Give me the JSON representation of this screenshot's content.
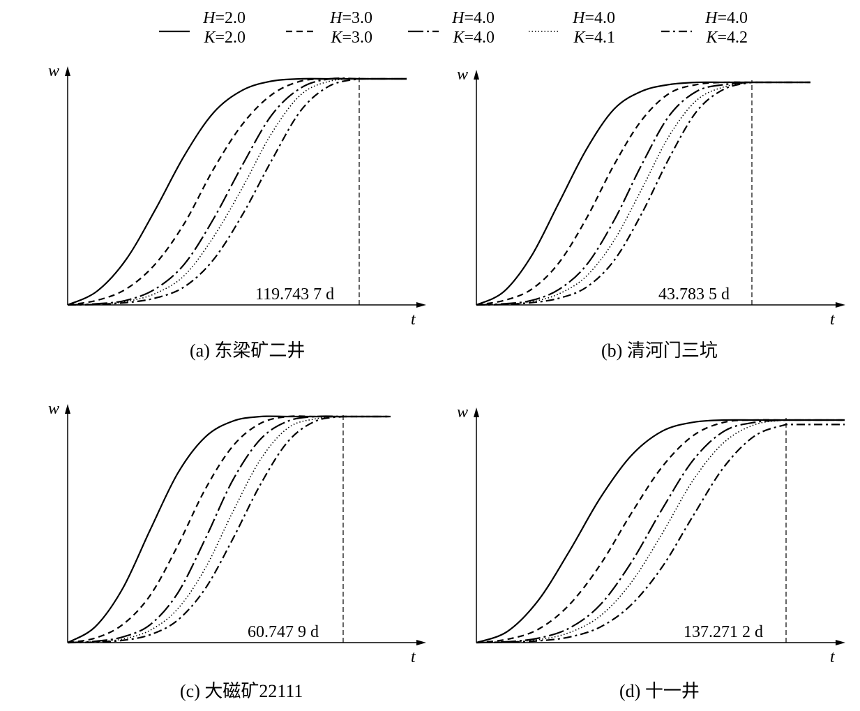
{
  "legend": [
    {
      "h": "2.0",
      "k": "2.0",
      "dash": "solid"
    },
    {
      "h": "3.0",
      "k": "3.0",
      "dash": "dashed"
    },
    {
      "h": "4.0",
      "k": "4.0",
      "dash": "long-dash-dot"
    },
    {
      "h": "4.0",
      "k": "4.1",
      "dash": "dotted"
    },
    {
      "h": "4.0",
      "k": "4.2",
      "dash": "dash-dot"
    }
  ],
  "legend_labels": {
    "h": "H",
    "k": "K"
  },
  "chart_data": [
    {
      "type": "line",
      "caption": "(a) 东梁矿二井",
      "xlabel": "t",
      "ylabel": "w",
      "annotation": "119.743 7 d",
      "x_range": [
        0,
        1
      ],
      "y_range": [
        0,
        1
      ],
      "series": [
        {
          "legend_index": 0,
          "x": [
            0,
            0.1,
            0.2,
            0.3,
            0.4,
            0.5,
            0.6,
            0.7,
            0.8,
            0.9,
            1.0
          ],
          "y": [
            0,
            0.06,
            0.2,
            0.42,
            0.66,
            0.85,
            0.95,
            0.99,
            1,
            1,
            1
          ]
        },
        {
          "legend_index": 1,
          "x": [
            0,
            0.1,
            0.2,
            0.3,
            0.4,
            0.5,
            0.6,
            0.7,
            0.8,
            0.9,
            1.0
          ],
          "y": [
            0,
            0.02,
            0.07,
            0.18,
            0.36,
            0.6,
            0.8,
            0.93,
            0.99,
            1,
            1
          ]
        },
        {
          "legend_index": 2,
          "x": [
            0,
            0.1,
            0.2,
            0.3,
            0.4,
            0.5,
            0.6,
            0.7,
            0.8,
            0.9,
            1.0
          ],
          "y": [
            0,
            0.005,
            0.02,
            0.07,
            0.18,
            0.38,
            0.62,
            0.84,
            0.96,
            1,
            1
          ]
        },
        {
          "legend_index": 3,
          "x": [
            0,
            0.1,
            0.2,
            0.3,
            0.4,
            0.5,
            0.6,
            0.7,
            0.8,
            0.9,
            1.0
          ],
          "y": [
            0,
            0.003,
            0.015,
            0.05,
            0.13,
            0.3,
            0.52,
            0.76,
            0.93,
            0.99,
            1
          ]
        },
        {
          "legend_index": 4,
          "x": [
            0,
            0.1,
            0.2,
            0.3,
            0.4,
            0.5,
            0.6,
            0.7,
            0.8,
            0.9,
            1.0
          ],
          "y": [
            0,
            0.002,
            0.01,
            0.03,
            0.08,
            0.2,
            0.4,
            0.64,
            0.86,
            0.97,
            1
          ]
        }
      ]
    },
    {
      "type": "line",
      "caption": "(b) 清河门三坑",
      "xlabel": "t",
      "ylabel": "w",
      "annotation": "43.783 5 d",
      "x_range": [
        0,
        1
      ],
      "y_range": [
        0,
        1
      ],
      "series": [
        {
          "legend_index": 0,
          "x": [
            0,
            0.1,
            0.2,
            0.3,
            0.4,
            0.5,
            0.6,
            0.7,
            0.8,
            0.9,
            1.0
          ],
          "y": [
            0,
            0.06,
            0.22,
            0.46,
            0.7,
            0.88,
            0.96,
            0.99,
            1,
            1,
            1
          ]
        },
        {
          "legend_index": 1,
          "x": [
            0,
            0.1,
            0.2,
            0.3,
            0.4,
            0.5,
            0.6,
            0.7,
            0.8,
            0.9,
            1.0
          ],
          "y": [
            0,
            0.02,
            0.07,
            0.19,
            0.39,
            0.63,
            0.83,
            0.95,
            0.99,
            1,
            1
          ]
        },
        {
          "legend_index": 2,
          "x": [
            0,
            0.1,
            0.2,
            0.3,
            0.4,
            0.5,
            0.6,
            0.7,
            0.8,
            0.9,
            1.0
          ],
          "y": [
            0,
            0.005,
            0.02,
            0.07,
            0.18,
            0.38,
            0.63,
            0.85,
            0.96,
            0.99,
            1
          ]
        },
        {
          "legend_index": 3,
          "x": [
            0,
            0.1,
            0.2,
            0.3,
            0.4,
            0.5,
            0.6,
            0.7,
            0.8,
            0.9,
            1.0
          ],
          "y": [
            0,
            0.003,
            0.014,
            0.05,
            0.13,
            0.29,
            0.52,
            0.76,
            0.92,
            0.98,
            1
          ]
        },
        {
          "legend_index": 4,
          "x": [
            0,
            0.1,
            0.2,
            0.3,
            0.4,
            0.5,
            0.6,
            0.7,
            0.8,
            0.9,
            1.0
          ],
          "y": [
            0,
            0.002,
            0.01,
            0.03,
            0.08,
            0.2,
            0.41,
            0.66,
            0.87,
            0.97,
            1
          ]
        }
      ]
    },
    {
      "type": "line",
      "caption": "(c) 大磁矿22111",
      "xlabel": "t",
      "ylabel": "w",
      "annotation": "60.747 9 d",
      "x_range": [
        0,
        1
      ],
      "y_range": [
        0,
        1
      ],
      "series": [
        {
          "legend_index": 0,
          "x": [
            0,
            0.1,
            0.2,
            0.3,
            0.4,
            0.5,
            0.6,
            0.7,
            0.8,
            0.9,
            1.0
          ],
          "y": [
            0,
            0.07,
            0.24,
            0.5,
            0.75,
            0.91,
            0.98,
            1,
            1,
            1,
            1
          ]
        },
        {
          "legend_index": 1,
          "x": [
            0,
            0.1,
            0.2,
            0.3,
            0.4,
            0.5,
            0.6,
            0.7,
            0.8,
            0.9,
            1.0
          ],
          "y": [
            0,
            0.02,
            0.08,
            0.21,
            0.43,
            0.68,
            0.87,
            0.97,
            1,
            1,
            1
          ]
        },
        {
          "legend_index": 2,
          "x": [
            0,
            0.1,
            0.2,
            0.3,
            0.4,
            0.5,
            0.6,
            0.7,
            0.8,
            0.9,
            1.0
          ],
          "y": [
            0,
            0.006,
            0.025,
            0.08,
            0.22,
            0.46,
            0.72,
            0.9,
            0.98,
            1,
            1
          ]
        },
        {
          "legend_index": 3,
          "x": [
            0,
            0.1,
            0.2,
            0.3,
            0.4,
            0.5,
            0.6,
            0.7,
            0.8,
            0.9,
            1.0
          ],
          "y": [
            0,
            0.004,
            0.016,
            0.055,
            0.15,
            0.33,
            0.58,
            0.81,
            0.95,
            0.99,
            1
          ]
        },
        {
          "legend_index": 4,
          "x": [
            0,
            0.1,
            0.2,
            0.3,
            0.4,
            0.5,
            0.6,
            0.7,
            0.8,
            0.9,
            1.0
          ],
          "y": [
            0,
            0.002,
            0.01,
            0.035,
            0.1,
            0.24,
            0.46,
            0.7,
            0.89,
            0.98,
            1
          ]
        }
      ]
    },
    {
      "type": "line",
      "caption": "(d) 十一井",
      "xlabel": "t",
      "ylabel": "w",
      "annotation": "137.271 2 d",
      "x_range": [
        0,
        1
      ],
      "y_range": [
        0,
        1
      ],
      "series": [
        {
          "legend_index": 0,
          "x": [
            0,
            0.1,
            0.2,
            0.3,
            0.4,
            0.5,
            0.6,
            0.7,
            0.8,
            0.9,
            1.0
          ],
          "y": [
            0,
            0.05,
            0.19,
            0.41,
            0.65,
            0.84,
            0.95,
            0.99,
            1,
            1,
            1
          ]
        },
        {
          "legend_index": 1,
          "x": [
            0,
            0.1,
            0.2,
            0.3,
            0.4,
            0.5,
            0.6,
            0.7,
            0.8,
            0.9,
            1.0
          ],
          "y": [
            0,
            0.015,
            0.06,
            0.17,
            0.35,
            0.58,
            0.79,
            0.93,
            0.99,
            1,
            1
          ]
        },
        {
          "legend_index": 2,
          "x": [
            0,
            0.1,
            0.2,
            0.3,
            0.4,
            0.5,
            0.6,
            0.7,
            0.8,
            0.9,
            1.0
          ],
          "y": [
            0,
            0.004,
            0.02,
            0.065,
            0.17,
            0.36,
            0.6,
            0.82,
            0.95,
            0.99,
            1
          ]
        },
        {
          "legend_index": 3,
          "x": [
            0,
            0.1,
            0.2,
            0.3,
            0.4,
            0.5,
            0.6,
            0.7,
            0.8,
            0.9,
            1.0
          ],
          "y": [
            0,
            0.003,
            0.013,
            0.045,
            0.12,
            0.27,
            0.49,
            0.73,
            0.9,
            0.98,
            1
          ]
        },
        {
          "legend_index": 4,
          "x": [
            0,
            0.1,
            0.2,
            0.3,
            0.4,
            0.5,
            0.6,
            0.7,
            0.8,
            0.9,
            1.0
          ],
          "y": [
            0,
            0.002,
            0.008,
            0.025,
            0.07,
            0.17,
            0.34,
            0.57,
            0.79,
            0.93,
            0.98
          ]
        }
      ]
    }
  ]
}
